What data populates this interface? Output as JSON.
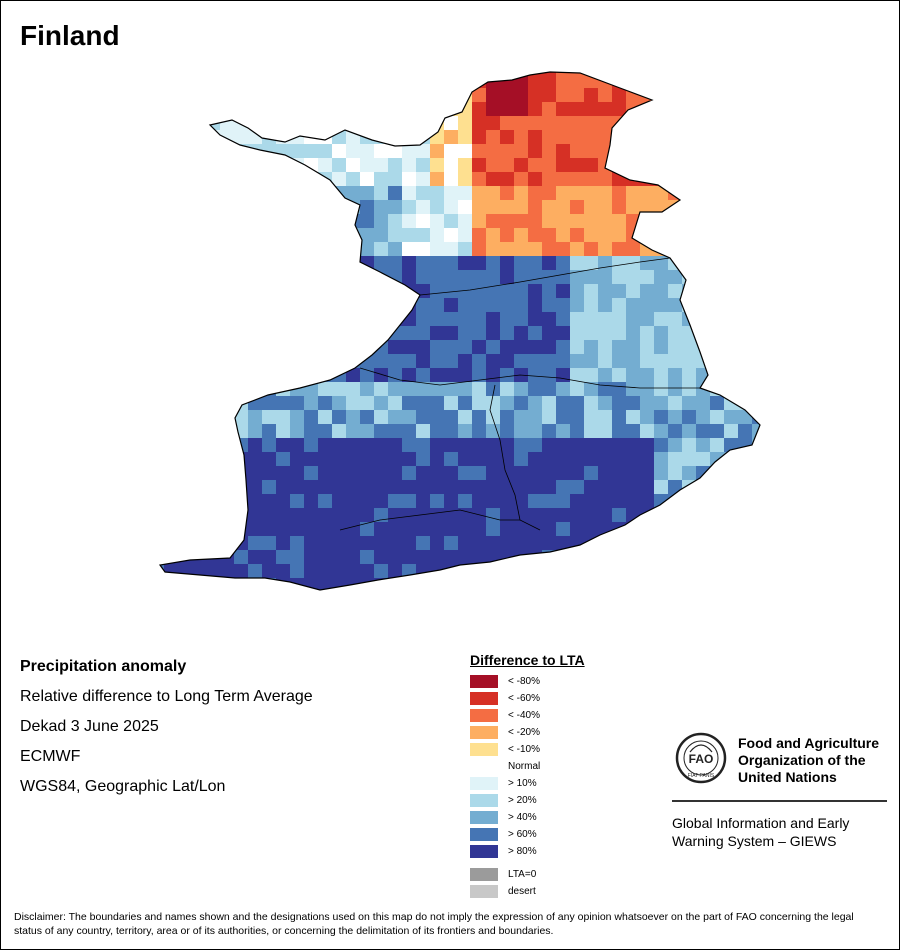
{
  "map_title": "Finland",
  "info": {
    "heading": "Precipitation anomaly",
    "line1": "Relative difference to Long Term Average",
    "line2": "Dekad 3 June 2025",
    "line3": "ECMWF",
    "line4": "WGS84, Geographic Lat/Lon"
  },
  "legend": {
    "title": "Difference to LTA",
    "items": [
      {
        "label": "< -80%",
        "color": "#a50f26"
      },
      {
        "label": "< -60%",
        "color": "#d63025"
      },
      {
        "label": "< -40%",
        "color": "#f46d43"
      },
      {
        "label": "< -20%",
        "color": "#fdae61"
      },
      {
        "label": "< -10%",
        "color": "#fee090"
      },
      {
        "label": "Normal",
        "color": "#ffffff"
      },
      {
        "label": "> 10%",
        "color": "#e0f3f8"
      },
      {
        "label": "> 20%",
        "color": "#abd9e9"
      },
      {
        "label": "> 40%",
        "color": "#74add1"
      },
      {
        "label": "> 60%",
        "color": "#4575b4"
      },
      {
        "label": "> 80%",
        "color": "#313695"
      }
    ],
    "extra": [
      {
        "label": "LTA=0",
        "color": "#9b9b9b"
      },
      {
        "label": "desert",
        "color": "#c8c8c8"
      }
    ]
  },
  "org": {
    "name_line1": "Food and Agriculture",
    "name_line2": "Organization of the",
    "name_line3": "United Nations",
    "emblem_text": "FAO",
    "emblem_motto": "FIAT PANIS",
    "system_line1": "Global Information and Early",
    "system_line2": "Warning System – GIEWS"
  },
  "disclaimer": "Disclaimer: The boundaries and names shown and the designations used on this map do not imply the expression of any opinion whatsoever on the part of FAO concerning the legal status of any country, territory, area or of its authorities, or concerning the delimitation of its frontiers and boundaries."
}
